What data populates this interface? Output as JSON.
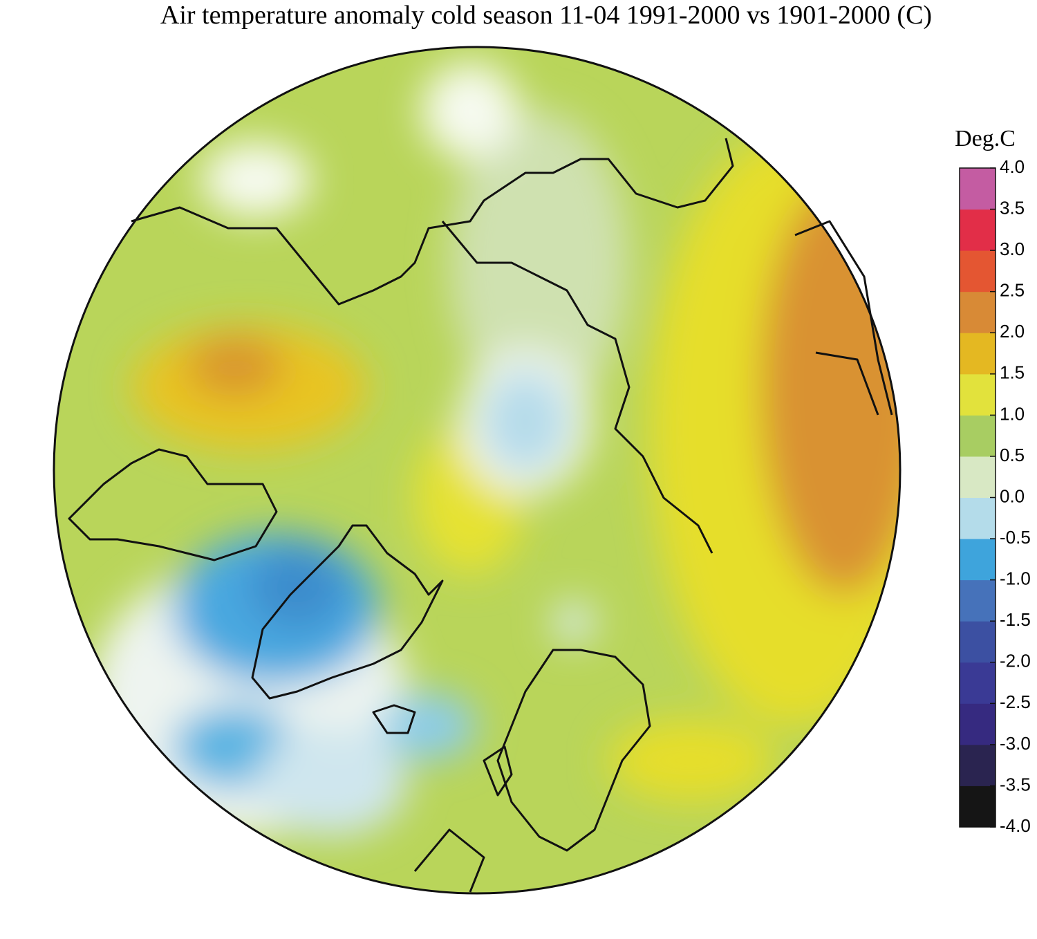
{
  "title": "Air temperature anomaly cold season 11-04 1991-2000 vs 1901-2000 (C)",
  "colorbar": {
    "label": "Deg.C",
    "clim": [
      -4,
      4
    ],
    "colormap": [
      "#151515",
      "#2a2450",
      "#362a80",
      "#3a3a95",
      "#3c50a2",
      "#4672ba",
      "#3ea4dc",
      "#b4dcea",
      "#d8e8c4",
      "#a8cd62",
      "#e2e23c",
      "#e4b822",
      "#d88a36",
      "#e45632",
      "#e22e48",
      "#c45ca2"
    ],
    "ticks": [
      {
        "value": 4,
        "label": "4.0"
      },
      3.5,
      {
        "value": 3,
        "label": "3.0"
      },
      2.5,
      {
        "value": 2,
        "label": "2.0"
      },
      1.5,
      {
        "value": 1,
        "label": "1.0"
      },
      0.5,
      {
        "value": 0,
        "label": "0.0"
      },
      -0.5,
      {
        "value": -1,
        "label": "-1.0"
      },
      -1.5,
      {
        "value": -2,
        "label": "-2.0"
      },
      -2.5,
      {
        "value": -3,
        "label": "-3.0"
      },
      -3.5,
      {
        "value": -4,
        "label": "-4.0"
      }
    ]
  }
}
